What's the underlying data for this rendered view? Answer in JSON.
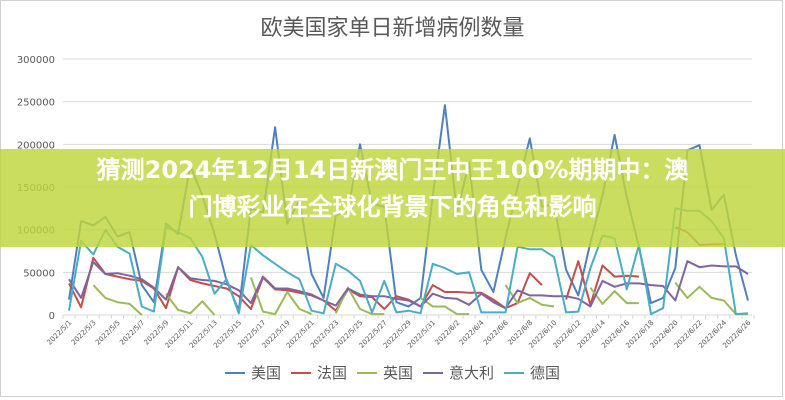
{
  "banner": {
    "line1": "猜测2024年12月14日新澳门王中王100%期期中：澳",
    "line2": "门博彩业在全球化背景下的角色和影响"
  },
  "chart_data": {
    "type": "line",
    "title": "欧美国家单日新增病例数量",
    "xlabel": "",
    "ylabel": "",
    "ylim": [
      0,
      300000
    ],
    "yticks": [
      0,
      50000,
      100000,
      150000,
      200000,
      250000,
      300000
    ],
    "grid": true,
    "legend": "bottom",
    "x_tick_labels": [
      "2022/5/1",
      "2022/5/3",
      "2022/5/5",
      "2022/5/7",
      "2022/5/9",
      "2022/5/11",
      "2022/5/13",
      "2022/5/15",
      "2022/5/17",
      "2022/5/19",
      "2022/5/21",
      "2022/5/23",
      "2022/5/25",
      "2022/5/27",
      "2022/5/29",
      "2022/5/31",
      "2022/6/2",
      "2022/6/4",
      "2022/6/6",
      "2022/6/8",
      "2022/6/10",
      "2022/6/12",
      "2022/6/14",
      "2022/6/16",
      "2022/6/18",
      "2022/6/20",
      "2022/6/22",
      "2022/6/24",
      "2022/6/26"
    ],
    "x": [
      "2022/5/1",
      "2022/5/2",
      "2022/5/3",
      "2022/5/4",
      "2022/5/5",
      "2022/5/6",
      "2022/5/7",
      "2022/5/8",
      "2022/5/9",
      "2022/5/10",
      "2022/5/11",
      "2022/5/12",
      "2022/5/13",
      "2022/5/14",
      "2022/5/15",
      "2022/5/16",
      "2022/5/17",
      "2022/5/18",
      "2022/5/19",
      "2022/5/20",
      "2022/5/21",
      "2022/5/22",
      "2022/5/23",
      "2022/5/24",
      "2022/5/25",
      "2022/5/26",
      "2022/5/27",
      "2022/5/28",
      "2022/5/29",
      "2022/5/30",
      "2022/5/31",
      "2022/6/1",
      "2022/6/2",
      "2022/6/3",
      "2022/6/4",
      "2022/6/5",
      "2022/6/6",
      "2022/6/7",
      "2022/6/8",
      "2022/6/9",
      "2022/6/10",
      "2022/6/11",
      "2022/6/12",
      "2022/6/13",
      "2022/6/14",
      "2022/6/15",
      "2022/6/16",
      "2022/6/17",
      "2022/6/18",
      "2022/6/19",
      "2022/6/20",
      "2022/6/21",
      "2022/6/22",
      "2022/6/23",
      "2022/6/24",
      "2022/6/25",
      "2022/6/26"
    ],
    "series": [
      {
        "name": "美国",
        "color": "#4f81bd",
        "values": [
          18000,
          110000,
          105000,
          115000,
          92000,
          97000,
          35000,
          15000,
          107000,
          95000,
          175000,
          140000,
          95000,
          40000,
          5000,
          125000,
          120000,
          220000,
          107000,
          135000,
          48000,
          20000,
          117000,
          122000,
          200000,
          130000,
          127000,
          15000,
          10000,
          20000,
          140000,
          246000,
          120000,
          179000,
          53000,
          27000,
          90000,
          150000,
          207000,
          127000,
          130000,
          53000,
          23000,
          85000,
          140000,
          211000,
          138000,
          80000,
          14000,
          20000,
          55000,
          193000,
          199000,
          123000,
          141000,
          70000,
          17000
        ]
      },
      {
        "name": "法国",
        "color": "#c0504d",
        "values": [
          37000,
          9000,
          67000,
          48000,
          45000,
          42000,
          40000,
          31000,
          8000,
          56000,
          41000,
          37000,
          34000,
          31000,
          22000,
          7000,
          44000,
          30000,
          29000,
          26000,
          23000,
          17000,
          5000,
          30000,
          22000,
          21000,
          7000,
          22000,
          18000,
          10000,
          35000,
          27000,
          27000,
          26000,
          26000,
          18000,
          8000,
          14000,
          49000,
          35000,
          null,
          18000,
          63000,
          12000,
          58000,
          45000,
          46000,
          45000,
          null,
          null,
          103000,
          97000,
          82000,
          83000,
          83000,
          null,
          null
        ]
      },
      {
        "name": "英国",
        "color": "#9bbb59",
        "values": [
          null,
          null,
          35000,
          20000,
          15000,
          13000,
          0,
          null,
          25000,
          6000,
          2000,
          16000,
          0,
          null,
          null,
          44000,
          4000,
          1000,
          27000,
          7000,
          1000,
          null,
          2000,
          32000,
          7000,
          1000,
          1000,
          null,
          null,
          20000,
          10000,
          10000,
          1000,
          1000,
          null,
          null,
          35000,
          14000,
          20000,
          12000,
          10000,
          null,
          null,
          32000,
          13000,
          28000,
          14000,
          14000,
          null,
          null,
          38000,
          20000,
          33000,
          20000,
          17000,
          1000,
          1000
        ]
      },
      {
        "name": "意大利",
        "color": "#8064a2",
        "values": [
          42000,
          20000,
          62000,
          48000,
          49000,
          46000,
          42000,
          32000,
          18000,
          56000,
          43000,
          41000,
          40000,
          36000,
          29000,
          14000,
          45000,
          31000,
          31000,
          28000,
          24000,
          17000,
          11000,
          31000,
          24000,
          22000,
          22000,
          19000,
          17000,
          10000,
          25000,
          20000,
          19000,
          12000,
          25000,
          15000,
          8000,
          29000,
          23000,
          23000,
          22000,
          22000,
          19000,
          10000,
          40000,
          33000,
          37000,
          37000,
          35000,
          34000,
          17000,
          63000,
          56000,
          58000,
          57000,
          57000,
          48000
        ]
      },
      {
        "name": "德国",
        "color": "#4bacc6",
        "values": [
          5000,
          87000,
          71000,
          100000,
          80000,
          72000,
          10000,
          4000,
          103000,
          97000,
          90000,
          68000,
          25000,
          42000,
          2000,
          82000,
          70000,
          60000,
          50000,
          42000,
          5000,
          2000,
          60000,
          52000,
          40000,
          3000,
          40000,
          3000,
          5000,
          2000,
          60000,
          55000,
          48000,
          50000,
          3000,
          3000,
          3000,
          80000,
          77000,
          77000,
          68000,
          3000,
          4000,
          55000,
          93000,
          90000,
          30000,
          82000,
          1000,
          8000,
          125000,
          122000,
          122000,
          110000,
          90000,
          1000,
          2000
        ]
      }
    ]
  }
}
